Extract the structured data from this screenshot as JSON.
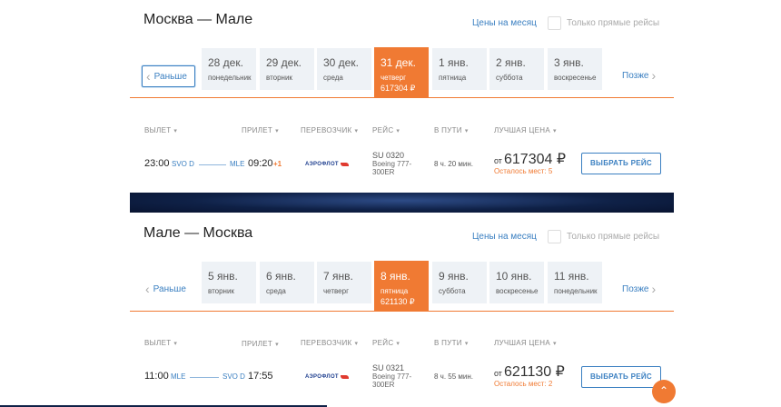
{
  "sections": [
    {
      "route_title": "Москва — Мале",
      "month_link": "Цены на месяц",
      "direct_only_label": "Только прямые рейсы",
      "prev_label": "Раньше",
      "next_label": "Позже",
      "dates": [
        {
          "date": "28 дек.",
          "weekday": "понедельник"
        },
        {
          "date": "29 дек.",
          "weekday": "вторник"
        },
        {
          "date": "30 дек.",
          "weekday": "среда"
        },
        {
          "date": "31 дек.",
          "weekday": "четверг",
          "price": "617304 ₽",
          "selected": true
        },
        {
          "date": "1 янв.",
          "weekday": "пятница"
        },
        {
          "date": "2 янв.",
          "weekday": "суббота"
        },
        {
          "date": "3 янв.",
          "weekday": "воскресенье"
        }
      ],
      "columns": {
        "departure": "ВЫЛЕТ",
        "arrival": "ПРИЛЕТ",
        "carrier": "ПЕРЕВОЗЧИК",
        "flight": "РЕЙС",
        "duration": "В ПУТИ",
        "best_price": "ЛУЧШАЯ ЦЕНА"
      },
      "row": {
        "dep_time": "23:00",
        "dep_code": "SVO D",
        "arr_code": "MLE",
        "arr_time": "09:20",
        "day_offset": "+1",
        "carrier_logo": "АЭРОФЛОТ",
        "flight_no": "SU 0320",
        "aircraft_line1": "Boeing 777-",
        "aircraft_line2": "300ER",
        "duration": "8 ч. 20 мин.",
        "price_prefix": "от",
        "price": "617304 ₽",
        "seats_left": "Осталось мест: 5",
        "select_label": "ВЫБРАТЬ РЕЙС"
      }
    },
    {
      "route_title": "Мале — Москва",
      "month_link": "Цены на месяц",
      "direct_only_label": "Только прямые рейсы",
      "prev_label": "Раньше",
      "next_label": "Позже",
      "dates": [
        {
          "date": "5 янв.",
          "weekday": "вторник"
        },
        {
          "date": "6 янв.",
          "weekday": "среда"
        },
        {
          "date": "7 янв.",
          "weekday": "четверг"
        },
        {
          "date": "8 янв.",
          "weekday": "пятница",
          "price": "621130 ₽",
          "selected": true
        },
        {
          "date": "9 янв.",
          "weekday": "суббота"
        },
        {
          "date": "10 янв.",
          "weekday": "воскресенье"
        },
        {
          "date": "11 янв.",
          "weekday": "понедельник"
        }
      ],
      "columns": {
        "departure": "ВЫЛЕТ",
        "arrival": "ПРИЛЕТ",
        "carrier": "ПЕРЕВОЗЧИК",
        "flight": "РЕЙС",
        "duration": "В ПУТИ",
        "best_price": "ЛУЧШАЯ ЦЕНА"
      },
      "row": {
        "dep_time": "11:00",
        "dep_code": "MLE",
        "arr_code": "SVO D",
        "arr_time": "17:55",
        "day_offset": "",
        "carrier_logo": "АЭРОФЛОТ",
        "flight_no": "SU 0321",
        "aircraft_line1": "Boeing 777-",
        "aircraft_line2": "300ER",
        "duration": "8 ч. 55 мин.",
        "price_prefix": "от",
        "price": "621130 ₽",
        "seats_left": "Осталось мест: 2",
        "select_label": "ВЫБРАТЬ РЕЙС"
      }
    }
  ],
  "icons": {
    "prev": "chevron-left-icon",
    "next": "chevron-right-icon",
    "column_sort": "caret-down-icon",
    "scroll_top": "arrow-up-icon"
  },
  "colors": {
    "accent": "#f07a33",
    "link": "#3a7fc1",
    "date_cell_bg": "#eef2f6",
    "banner": "#0f2147"
  }
}
